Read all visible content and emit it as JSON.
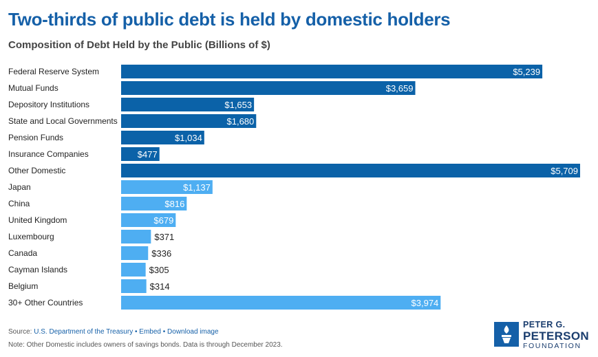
{
  "title": "Two-thirds of public debt is held by domestic holders",
  "subtitle": "Composition of Debt Held by the Public (Billions of $)",
  "colors": {
    "domestic": "#0b62a8",
    "foreign": "#4eaef2",
    "title": "#1560a8"
  },
  "chart_data": {
    "type": "bar",
    "orientation": "horizontal",
    "categories": [
      "Federal Reserve System",
      "Mutual Funds",
      "Depository Institutions",
      "State and Local Governments",
      "Pension Funds",
      "Insurance Companies",
      "Other Domestic",
      "Japan",
      "China",
      "United Kingdom",
      "Luxembourg",
      "Canada",
      "Cayman Islands",
      "Belgium",
      "30+ Other Countries"
    ],
    "values": [
      5239,
      3659,
      1653,
      1680,
      1034,
      477,
      5709,
      1137,
      816,
      679,
      371,
      336,
      305,
      314,
      3974
    ],
    "labels": [
      "$5,239",
      "$3,659",
      "$1,653",
      "$1,680",
      "$1,034",
      "$477",
      "$5,709",
      "$1,137",
      "$816",
      "$679",
      "$371",
      "$336",
      "$305",
      "$314",
      "$3,974"
    ],
    "groups": [
      "domestic",
      "domestic",
      "domestic",
      "domestic",
      "domestic",
      "domestic",
      "domestic",
      "foreign",
      "foreign",
      "foreign",
      "foreign",
      "foreign",
      "foreign",
      "foreign",
      "foreign"
    ],
    "xlim": [
      0,
      5709
    ],
    "grid": false,
    "legend": "none"
  },
  "footer": {
    "source_label": "Source:",
    "source_link": "U.S. Department of the Treasury",
    "separator": "•",
    "embed": "Embed",
    "download": "Download image",
    "note": "Note: Other Domestic includes owners of savings bonds. Data is through December 2023."
  },
  "logo": {
    "line1": "PETER G.",
    "line2": "PETERSON",
    "line3": "FOUNDATION",
    "icon": "torch-logo-icon"
  }
}
